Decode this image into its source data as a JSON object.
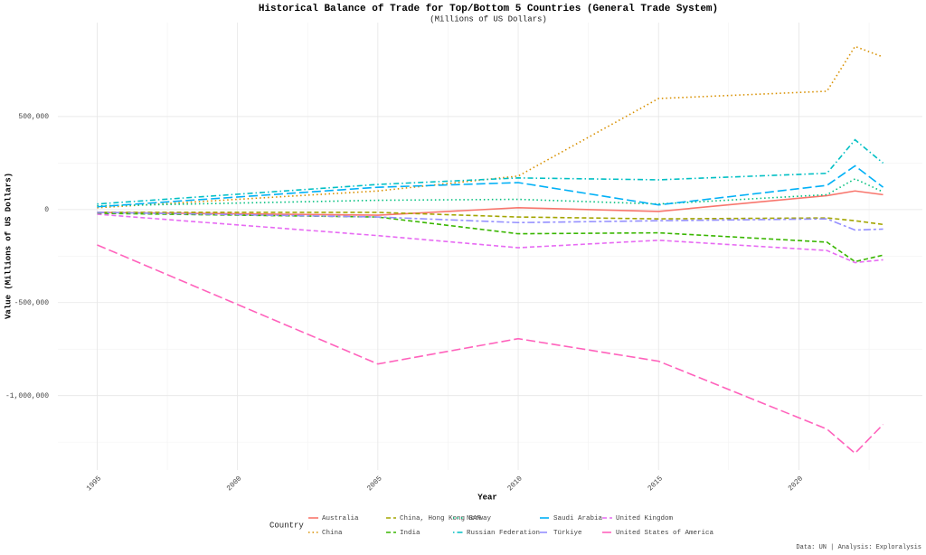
{
  "chart_data": {
    "type": "line",
    "title": "Historical Balance of Trade for Top/Bottom 5 Countries (General Trade System)",
    "subtitle": "(Millions of US Dollars)",
    "x_label": "Year",
    "y_label": "Value (Millions of US Dollars)",
    "legend_title": "Country",
    "caption": "Data: UN | Analysis: Exploralysis",
    "grid": true,
    "legend": "bottom",
    "x": [
      1995,
      2005,
      2010,
      2015,
      2021,
      2022,
      2023
    ],
    "xlim": [
      1993.6,
      2024.4
    ],
    "xticks": [
      1995,
      2000,
      2005,
      2010,
      2015,
      2020
    ],
    "ylim": [
      -1400000,
      1005000
    ],
    "yticks": [
      {
        "value": -1000000,
        "label": "-1,000,000"
      },
      {
        "value": -500000,
        "label": "-500,000"
      },
      0,
      {
        "value": 500000,
        "label": "500,000"
      }
    ],
    "series": [
      {
        "name": "Australia",
        "color": "#F8766D",
        "dash": "solid",
        "values": [
          -15000,
          -30000,
          10000,
          -10000,
          75000,
          100000,
          80000
        ]
      },
      {
        "name": "China",
        "color": "#D89000",
        "dash": "dotted",
        "values": [
          10000,
          100000,
          180000,
          597000,
          636000,
          877000,
          820000
        ]
      },
      {
        "name": "China, Hong Kong SAR",
        "color": "#A3A500",
        "dash": "dashed",
        "values": [
          -15000,
          -15000,
          -40000,
          -50000,
          -45000,
          -60000,
          -80000
        ]
      },
      {
        "name": "India",
        "color": "#39B600",
        "dash": "dashed",
        "values": [
          -20000,
          -40000,
          -130000,
          -125000,
          -175000,
          -280000,
          -245000
        ]
      },
      {
        "name": "Norway",
        "color": "#00BF7D",
        "dash": "dotted",
        "values": [
          20000,
          50000,
          55000,
          30000,
          80000,
          165000,
          95000
        ]
      },
      {
        "name": "Russian Federation",
        "color": "#00BFC4",
        "dash": "dotdash",
        "values": [
          30000,
          135000,
          170000,
          160000,
          195000,
          375000,
          250000
        ]
      },
      {
        "name": "Saudi Arabia",
        "color": "#00B0F6",
        "dash": "longdash",
        "values": [
          15000,
          120000,
          145000,
          25000,
          130000,
          235000,
          120000
        ]
      },
      {
        "name": "Türkiye",
        "color": "#9590FF",
        "dash": "twodash",
        "values": [
          -15000,
          -40000,
          -70000,
          -60000,
          -50000,
          -110000,
          -105000
        ]
      },
      {
        "name": "United Kingdom",
        "color": "#E76BF3",
        "dash": "dashed",
        "values": [
          -25000,
          -140000,
          -205000,
          -165000,
          -220000,
          -285000,
          -270000
        ]
      },
      {
        "name": "United States of America",
        "color": "#FF62BC",
        "dash": "longdash",
        "values": [
          -190000,
          -830000,
          -694000,
          -815000,
          -1180000,
          -1310000,
          -1155000
        ]
      }
    ]
  }
}
